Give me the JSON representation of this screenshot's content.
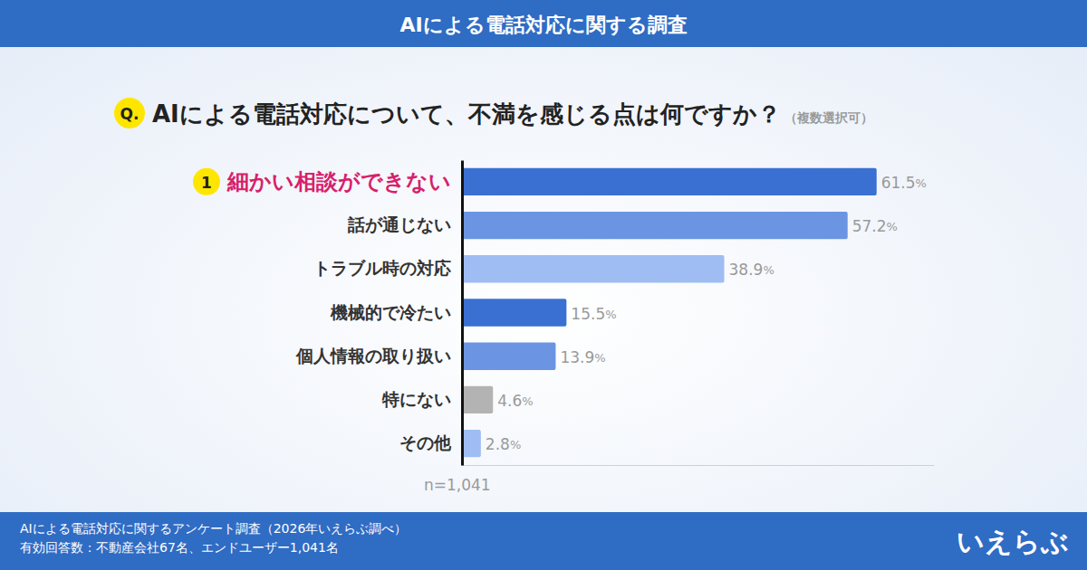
{
  "chart_data": {
    "type": "bar",
    "title": "AIによる電話対応に関する調査",
    "question_badge": "Q.",
    "subtitle": "AIによる電話対応について、不満を感じる点は何ですか？",
    "subtitle_note": "（複数選択可）",
    "rank_badge": "1",
    "categories": [
      "細かい相談ができない",
      "話が通じない",
      "トラブル時の対応",
      "機械的で冷たい",
      "個人情報の取り扱い",
      "特にない",
      "その他"
    ],
    "values": [
      61.5,
      57.2,
      38.9,
      15.5,
      13.9,
      4.6,
      2.8
    ],
    "value_labels": [
      "61.5%",
      "57.2%",
      "38.9%",
      "15.5%",
      "13.9%",
      "4.6%",
      "2.8%"
    ],
    "colors": [
      "#3a70d2",
      "#6b95e2",
      "#9fbdf3",
      "#3a70d2",
      "#6b95e2",
      "#b3b3b3",
      "#9fbdf3"
    ],
    "orientation": "horizontal",
    "data_labels": true,
    "tick_labels": false,
    "grid": false,
    "xlim": [
      0,
      70
    ],
    "xticks": [],
    "note": "n=1,041",
    "footer": [
      "AIによる電話対応に関するアンケート調査（2026年いえらぶ調べ）",
      "有効回答数：不動産会社67名、エンドユーザー1,041名"
    ],
    "logo": "いえらぶ"
  }
}
